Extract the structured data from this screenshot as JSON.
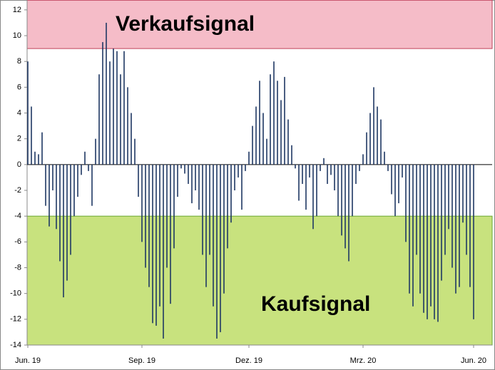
{
  "chart_data": {
    "type": "bar",
    "categories": [
      "Jun. 19",
      null,
      null,
      null,
      null,
      null,
      null,
      null,
      null,
      null,
      null,
      null,
      null,
      null,
      null,
      null,
      null,
      null,
      null,
      null,
      null,
      null,
      null,
      null,
      null,
      null,
      null,
      null,
      null,
      null,
      null,
      null,
      "Sep. 19",
      null,
      null,
      null,
      null,
      null,
      null,
      null,
      null,
      null,
      null,
      null,
      null,
      null,
      null,
      null,
      null,
      null,
      null,
      null,
      null,
      null,
      null,
      null,
      null,
      null,
      null,
      null,
      null,
      null,
      "Dez. 19",
      null,
      null,
      null,
      null,
      null,
      null,
      null,
      null,
      null,
      null,
      null,
      null,
      null,
      null,
      null,
      null,
      null,
      null,
      null,
      null,
      null,
      null,
      null,
      null,
      null,
      null,
      null,
      null,
      null,
      null,
      null,
      "Mrz. 20",
      null,
      null,
      null,
      null,
      null,
      null,
      null,
      null,
      null,
      null,
      null,
      null,
      null,
      null,
      null,
      null,
      null,
      null,
      null,
      null,
      null,
      null,
      null,
      null,
      null,
      null,
      null,
      null,
      null,
      null,
      "Jun. 20"
    ],
    "values": [
      8,
      4.5,
      1,
      0.8,
      2.5,
      -3.2,
      -4.8,
      -2,
      -5,
      -7.5,
      -10.3,
      -9,
      -7,
      -4,
      -2.5,
      -0.8,
      1,
      -0.5,
      -3.2,
      2,
      7,
      9.5,
      11,
      8,
      9,
      8.8,
      7,
      8.8,
      6,
      4,
      2,
      -2.5,
      -6,
      -8,
      -9.5,
      -12.3,
      -12.5,
      -11,
      -13.5,
      -8,
      -10.8,
      -6.5,
      -2.5,
      -0.3,
      -0.7,
      -1.5,
      -3,
      -2,
      -3.5,
      -7,
      -9.5,
      -7,
      -11,
      -13.5,
      -13,
      -10,
      -6.5,
      -4.5,
      -2,
      -1,
      -3.5,
      -0.5,
      1,
      3,
      4.5,
      6.5,
      4,
      2,
      7,
      8,
      6.5,
      5,
      6.8,
      3.5,
      1.5,
      -0.3,
      -2.8,
      -1.5,
      -3.5,
      -1,
      -5,
      -4,
      -0.5,
      0.5,
      -1.5,
      -0.8,
      -2,
      -4,
      -5.5,
      -6.5,
      -7.5,
      -4,
      -1.5,
      -0.5,
      0.8,
      2.5,
      4,
      6,
      4.5,
      3.5,
      1,
      -0.5,
      -2.3,
      -4,
      -3,
      -1,
      -6,
      -10,
      -11,
      -7,
      -10,
      -11.5,
      -12,
      -11,
      -12,
      -12.2,
      -9,
      -7,
      -5,
      -8,
      -10,
      -9.5,
      -4.5,
      -7,
      -9.5,
      -12
    ],
    "color": "#1f3864",
    "ylim": [
      -14,
      12.75
    ],
    "yticks": [
      -14,
      -12,
      -10,
      -8,
      -6,
      -4,
      -2,
      0,
      2,
      4,
      6,
      8,
      10,
      12
    ],
    "bands": [
      {
        "label": "Verkaufsignal",
        "from": 9,
        "to": 12.75,
        "color": "#f5bcc8"
      },
      {
        "label": "Kaufsignal",
        "from": -14,
        "to": -4,
        "color": "#c8e27e"
      }
    ]
  }
}
